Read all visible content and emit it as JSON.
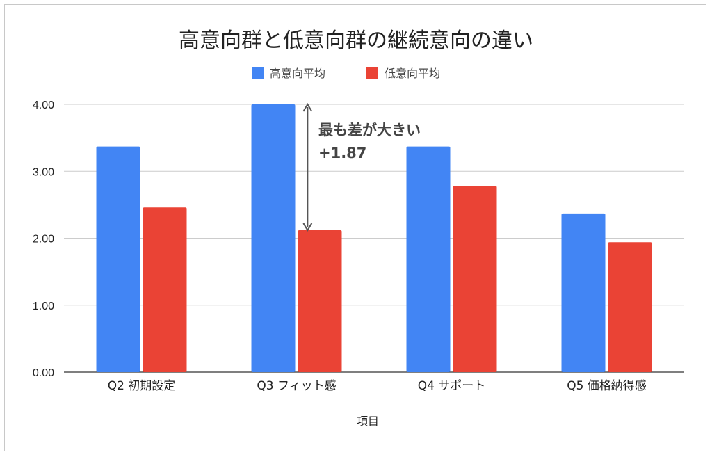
{
  "chart_data": {
    "type": "bar",
    "title": "高意向群と低意向群の継続意向の違い",
    "xlabel": "項目",
    "ylabel": "",
    "ylim": [
      0,
      4
    ],
    "yticks": [
      "0.00",
      "1.00",
      "2.00",
      "3.00",
      "4.00"
    ],
    "grid": true,
    "legend_position": "top",
    "categories": [
      "Q2 初期設定",
      "Q3 フィット感",
      "Q4 サポート",
      "Q5 価格納得感"
    ],
    "series": [
      {
        "name": "高意向平均",
        "color": "#4285F4",
        "values": [
          3.37,
          4.0,
          3.37,
          2.37
        ]
      },
      {
        "name": "低意向平均",
        "color": "#EA4335",
        "values": [
          2.46,
          2.12,
          2.78,
          1.94
        ]
      }
    ],
    "annotation": {
      "line1": "最も差が大きい",
      "line2": "+1.87",
      "category_index": 1
    }
  }
}
